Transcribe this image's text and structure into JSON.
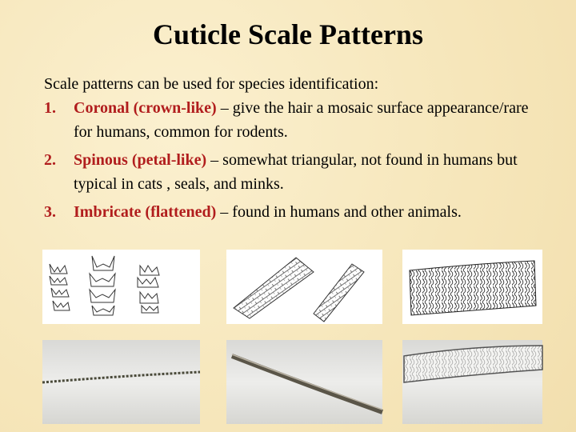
{
  "title": "Cuticle Scale Patterns",
  "intro": "Scale patterns can be used for species identification:",
  "items": [
    {
      "number": "1.",
      "term": "Coronal (crown-like)",
      "description": "– give the hair a mosaic surface appearance/rare for humans, common for rodents."
    },
    {
      "number": "2.",
      "term": "Spinous (petal-like)",
      "description": "– somewhat triangular, not found in humans but typical in cats , seals, and minks."
    },
    {
      "number": "3.",
      "term": "Imbricate (flattened)",
      "description": "– found in humans and other animals."
    }
  ]
}
